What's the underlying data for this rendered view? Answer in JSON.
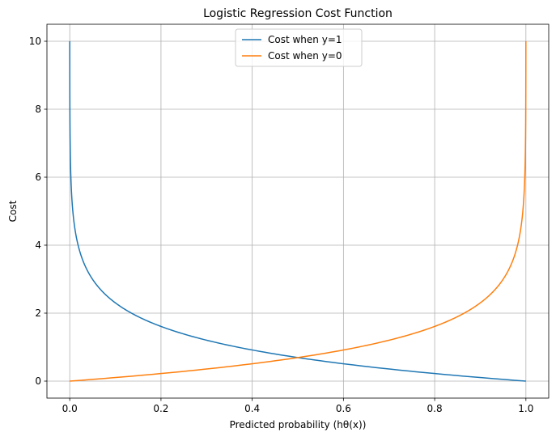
{
  "chart_data": {
    "type": "line",
    "title": "Logistic Regression Cost Function",
    "xlabel": "Predicted probability (hθ(x))",
    "ylabel": "Cost",
    "xlim": [
      -0.05,
      1.05
    ],
    "ylim": [
      -0.5,
      10.5
    ],
    "xticks": [
      0.0,
      0.2,
      0.4,
      0.6,
      0.8,
      1.0
    ],
    "xtick_labels": [
      "0.0",
      "0.2",
      "0.4",
      "0.6",
      "0.8",
      "1.0"
    ],
    "yticks": [
      0,
      2,
      4,
      6,
      8,
      10
    ],
    "ytick_labels": [
      "0",
      "2",
      "4",
      "6",
      "8",
      "10"
    ],
    "grid": true,
    "legend_position": "top-center",
    "x_domain": [
      4.54e-05,
      0.9999546
    ],
    "series": [
      {
        "name": "Cost when y=1",
        "formula": "-log(h)",
        "color": "#1f77b4",
        "sample_points": [
          [
            4.54e-05,
            10.0
          ],
          [
            0.01,
            4.61
          ],
          [
            0.05,
            3.0
          ],
          [
            0.1,
            2.3
          ],
          [
            0.2,
            1.61
          ],
          [
            0.4,
            0.92
          ],
          [
            0.5,
            0.69
          ],
          [
            0.6,
            0.51
          ],
          [
            0.8,
            0.22
          ],
          [
            0.9999546,
            0.0
          ]
        ]
      },
      {
        "name": "Cost when y=0",
        "formula": "-log(1-h)",
        "color": "#ff7f0e",
        "sample_points": [
          [
            4.54e-05,
            0.0
          ],
          [
            0.2,
            0.22
          ],
          [
            0.4,
            0.51
          ],
          [
            0.5,
            0.69
          ],
          [
            0.6,
            0.92
          ],
          [
            0.8,
            1.61
          ],
          [
            0.9,
            2.3
          ],
          [
            0.95,
            3.0
          ],
          [
            0.99,
            4.61
          ],
          [
            0.9999546,
            10.0
          ]
        ]
      }
    ]
  }
}
